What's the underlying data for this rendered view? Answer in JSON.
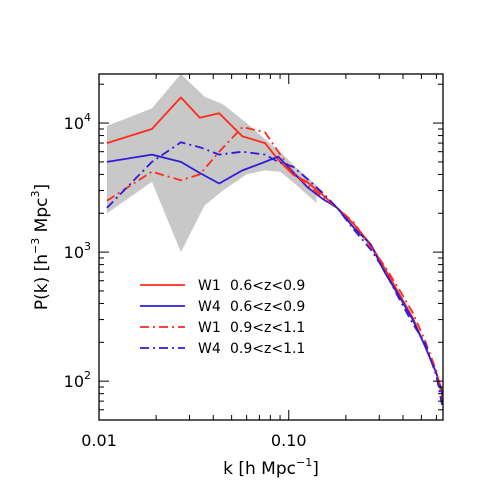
{
  "chart_data": {
    "type": "line",
    "xscale": "log",
    "yscale": "log",
    "xlim": [
      0.01,
      0.65
    ],
    "ylim": [
      50,
      24000
    ],
    "x_ticks": [
      {
        "value": 0.01,
        "label": "0.01"
      },
      {
        "value": 0.1,
        "label": "0.10"
      }
    ],
    "y_ticks": [
      {
        "value": 100,
        "base": "10",
        "exp": "2"
      },
      {
        "value": 1000,
        "base": "10",
        "exp": "3"
      },
      {
        "value": 10000,
        "base": "10",
        "exp": "4"
      }
    ],
    "xlabel": {
      "prefix": "k  [h Mpc",
      "sup": "−1",
      "suffix": "]"
    },
    "ylabel": {
      "prefix": "P(k)  [h",
      "sup1": "−3",
      "mid": " Mpc",
      "sup2": "3",
      "suffix": "]"
    },
    "legend_position": "lower-left",
    "band": {
      "color": "#c8c8c8",
      "x": [
        0.011,
        0.019,
        0.027,
        0.036,
        0.045,
        0.06,
        0.075,
        0.09,
        0.11,
        0.14
      ],
      "upper": [
        9500,
        13000,
        24000,
        16000,
        14000,
        10000,
        7500,
        6000,
        4500,
        3300
      ],
      "lower": [
        2000,
        3500,
        1000,
        2300,
        3000,
        4000,
        4300,
        4200,
        3300,
        2400
      ]
    },
    "series": [
      {
        "name": "W1",
        "range": "0.6<z<0.9",
        "color": "#ff2a1a",
        "dash": "solid",
        "x": [
          0.011,
          0.019,
          0.027,
          0.034,
          0.043,
          0.057,
          0.075,
          0.088,
          0.105,
          0.125,
          0.15,
          0.18,
          0.22,
          0.27,
          0.32,
          0.38,
          0.45,
          0.52,
          0.6,
          0.65
        ],
        "y": [
          7000,
          9000,
          15800,
          11000,
          11900,
          7900,
          7000,
          5200,
          4000,
          3500,
          2800,
          2200,
          1650,
          1150,
          750,
          480,
          310,
          190,
          115,
          80
        ]
      },
      {
        "name": "W4",
        "range": "0.6<z<0.9",
        "color": "#2f1cd8",
        "dash": "solid",
        "x": [
          0.011,
          0.019,
          0.027,
          0.034,
          0.043,
          0.057,
          0.075,
          0.088,
          0.105,
          0.125,
          0.15,
          0.18,
          0.22,
          0.27,
          0.32,
          0.38,
          0.45,
          0.52,
          0.6,
          0.65
        ],
        "y": [
          5000,
          5700,
          5000,
          4100,
          3400,
          4300,
          5000,
          5500,
          4200,
          3200,
          2600,
          2200,
          1550,
          1150,
          700,
          460,
          300,
          190,
          115,
          75
        ]
      },
      {
        "name": "W1",
        "range": "0.9<z<1.1",
        "color": "#ff2a1a",
        "dash": "dashdot",
        "x": [
          0.011,
          0.019,
          0.027,
          0.034,
          0.043,
          0.057,
          0.075,
          0.088,
          0.105,
          0.125,
          0.15,
          0.18,
          0.22,
          0.27,
          0.32,
          0.38,
          0.45,
          0.52,
          0.6,
          0.65
        ],
        "y": [
          2500,
          4200,
          3600,
          4000,
          6000,
          9300,
          8500,
          6000,
          4200,
          3300,
          2700,
          2200,
          1700,
          1100,
          780,
          520,
          340,
          210,
          120,
          70
        ]
      },
      {
        "name": "W4",
        "range": "0.9<z<1.1",
        "color": "#2f1cd8",
        "dash": "dashdot",
        "x": [
          0.011,
          0.019,
          0.027,
          0.034,
          0.043,
          0.057,
          0.075,
          0.088,
          0.105,
          0.125,
          0.15,
          0.18,
          0.22,
          0.27,
          0.32,
          0.38,
          0.45,
          0.52,
          0.6,
          0.65
        ],
        "y": [
          2200,
          5000,
          7100,
          6500,
          5700,
          6000,
          5700,
          5000,
          4600,
          3700,
          2900,
          2200,
          1500,
          1050,
          720,
          440,
          280,
          200,
          110,
          60
        ]
      }
    ]
  }
}
